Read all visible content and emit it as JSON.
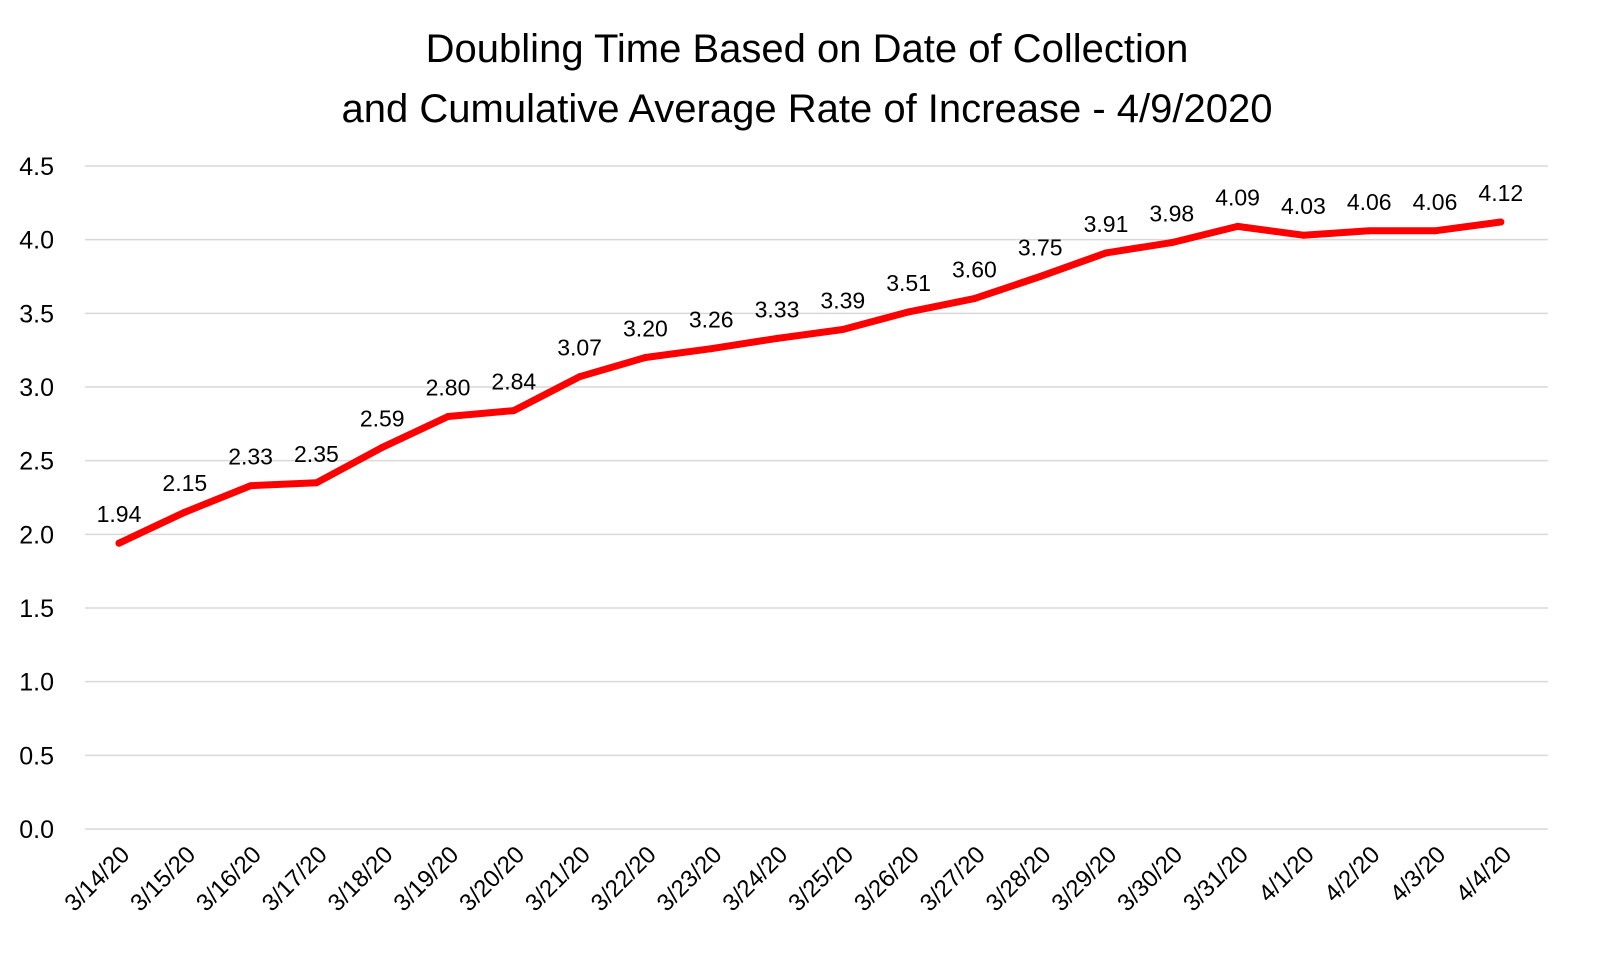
{
  "chart_data": {
    "type": "line",
    "title": "Doubling Time Based on Date of Collection",
    "subtitle": "and Cumulative Average Rate of Increase  - 4/9/2020",
    "xlabel": "",
    "ylabel": "",
    "ylim": [
      0,
      4.5
    ],
    "yticks": [
      "0.0",
      "0.5",
      "1.0",
      "1.5",
      "2.0",
      "2.5",
      "3.0",
      "3.5",
      "4.0",
      "4.5"
    ],
    "ytick_values": [
      0,
      0.5,
      1.0,
      1.5,
      2.0,
      2.5,
      3.0,
      3.5,
      4.0,
      4.5
    ],
    "grid": true,
    "legend": "none",
    "categories": [
      "3/14/20",
      "3/15/20",
      "3/16/20",
      "3/17/20",
      "3/18/20",
      "3/19/20",
      "3/20/20",
      "3/21/20",
      "3/22/20",
      "3/23/20",
      "3/24/20",
      "3/25/20",
      "3/26/20",
      "3/27/20",
      "3/28/20",
      "3/29/20",
      "3/30/20",
      "3/31/20",
      "4/1/20",
      "4/2/20",
      "4/3/20",
      "4/4/20"
    ],
    "series": [
      {
        "values": [
          1.94,
          2.15,
          2.33,
          2.35,
          2.59,
          2.8,
          2.84,
          3.07,
          3.2,
          3.26,
          3.33,
          3.39,
          3.51,
          3.6,
          3.75,
          3.91,
          3.98,
          4.09,
          4.03,
          4.06,
          4.06,
          4.12
        ],
        "data_labels": [
          "1.94",
          "2.15",
          "2.33",
          "2.35",
          "2.59",
          "2.80",
          "2.84",
          "3.07",
          "3.20",
          "3.26",
          "3.33",
          "3.39",
          "3.51",
          "3.60",
          "3.75",
          "3.91",
          "3.98",
          "4.09",
          "4.03",
          "4.06",
          "4.06",
          "4.12"
        ],
        "color": "#ff0000"
      }
    ],
    "colors": {
      "line": "#ff0000",
      "grid": "#d9d9d9",
      "text": "#000000"
    }
  }
}
